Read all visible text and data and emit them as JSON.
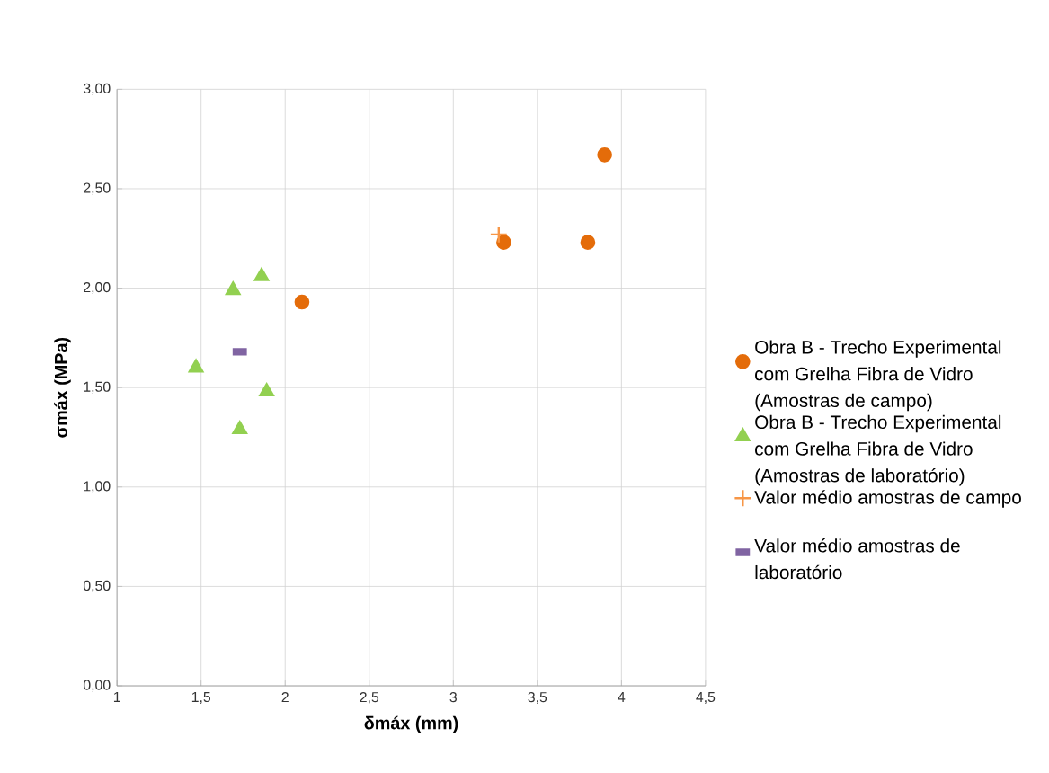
{
  "chart_data": {
    "type": "scatter",
    "xlabel": "δmáx (mm)",
    "ylabel": "σmáx (MPa)",
    "xlim": [
      1,
      4.5
    ],
    "ylim": [
      0,
      3
    ],
    "xticks": [
      1,
      {
        "value": 1.5,
        "label": "1,5"
      },
      2,
      {
        "value": 2.5,
        "label": "2,5"
      },
      3,
      {
        "value": 3.5,
        "label": "3,5"
      },
      4,
      {
        "value": 4.5,
        "label": "4,5"
      }
    ],
    "yticks": [
      {
        "value": 0,
        "label": "0,00"
      },
      {
        "value": 0.5,
        "label": "0,50"
      },
      {
        "value": 1,
        "label": "1,00"
      },
      {
        "value": 1.5,
        "label": "1,50"
      },
      {
        "value": 2,
        "label": "2,00"
      },
      {
        "value": 2.5,
        "label": "2,50"
      },
      {
        "value": 3,
        "label": "3,00"
      }
    ],
    "grid": true,
    "legend": "right",
    "series": [
      {
        "name": "Obra B - Trecho Experimental com Grelha Fibra de Vidro (Amostras de campo)",
        "color": "#e46c0a",
        "marker": "circle",
        "x": [
          2.1,
          3.3,
          3.8,
          3.9
        ],
        "values": [
          1.93,
          2.23,
          2.23,
          2.67
        ]
      },
      {
        "name": "Obra B - Trecho Experimental com Grelha Fibra de Vidro (Amostras de laboratório)",
        "color": "#92d050",
        "marker": "triangle",
        "x": [
          1.47,
          1.69,
          1.86,
          1.73,
          1.89
        ],
        "values": [
          1.6,
          1.99,
          2.06,
          1.29,
          1.48
        ]
      },
      {
        "name": "Valor médio amostras de campo",
        "color": "#f79646",
        "marker": "cross",
        "x": [
          3.27
        ],
        "values": [
          2.27
        ]
      },
      {
        "name": "Valor médio amostras de laboratório",
        "color": "#8064a2",
        "marker": "square",
        "x": [
          1.73
        ],
        "values": [
          1.68
        ]
      }
    ]
  }
}
